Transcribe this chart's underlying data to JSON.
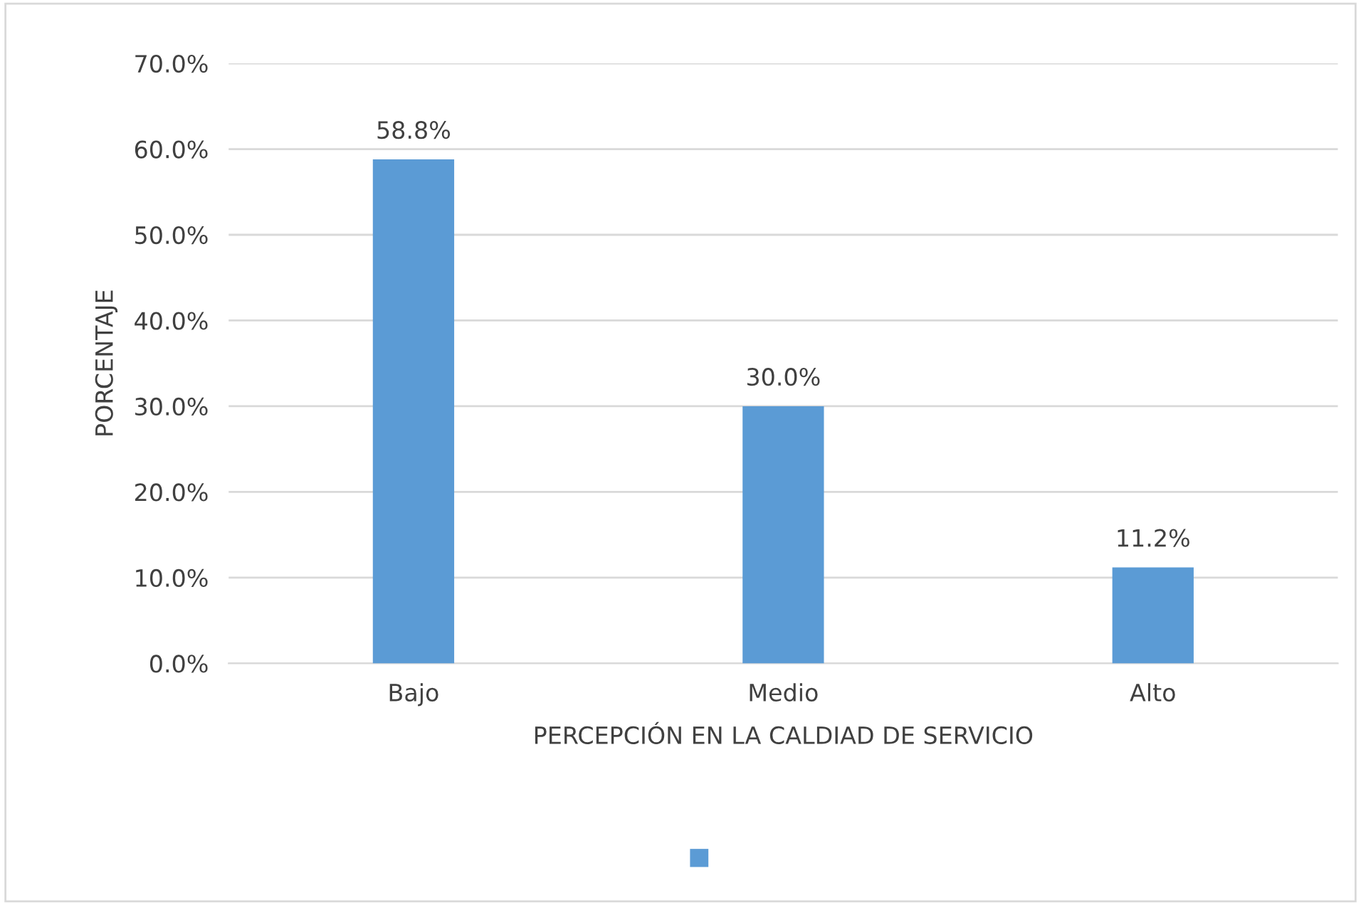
{
  "chart_data": {
    "type": "bar",
    "xlabel": "PERCEPCIÓN EN LA CALDIAD DE SERVICIO",
    "ylabel": "PORCENTAJE",
    "categories": [
      "Bajo",
      "Medio",
      "Alto"
    ],
    "series": [
      {
        "color": "#5b9bd5",
        "values": [
          58.8,
          30.0,
          11.2
        ]
      }
    ],
    "value_labels": [
      "58.8%",
      "30.0%",
      "11.2%"
    ],
    "ylim": [
      0,
      70
    ],
    "yticks": [
      {
        "value": 0,
        "label": "0.0%"
      },
      {
        "value": 10,
        "label": "10.0%"
      },
      {
        "value": 20,
        "label": "20.0%"
      },
      {
        "value": 30,
        "label": "30.0%"
      },
      {
        "value": 40,
        "label": "40.0%"
      },
      {
        "value": 50,
        "label": "50.0%"
      },
      {
        "value": 60,
        "label": "60.0%"
      },
      {
        "value": 70,
        "label": "70.0%"
      }
    ],
    "grid": "y"
  }
}
